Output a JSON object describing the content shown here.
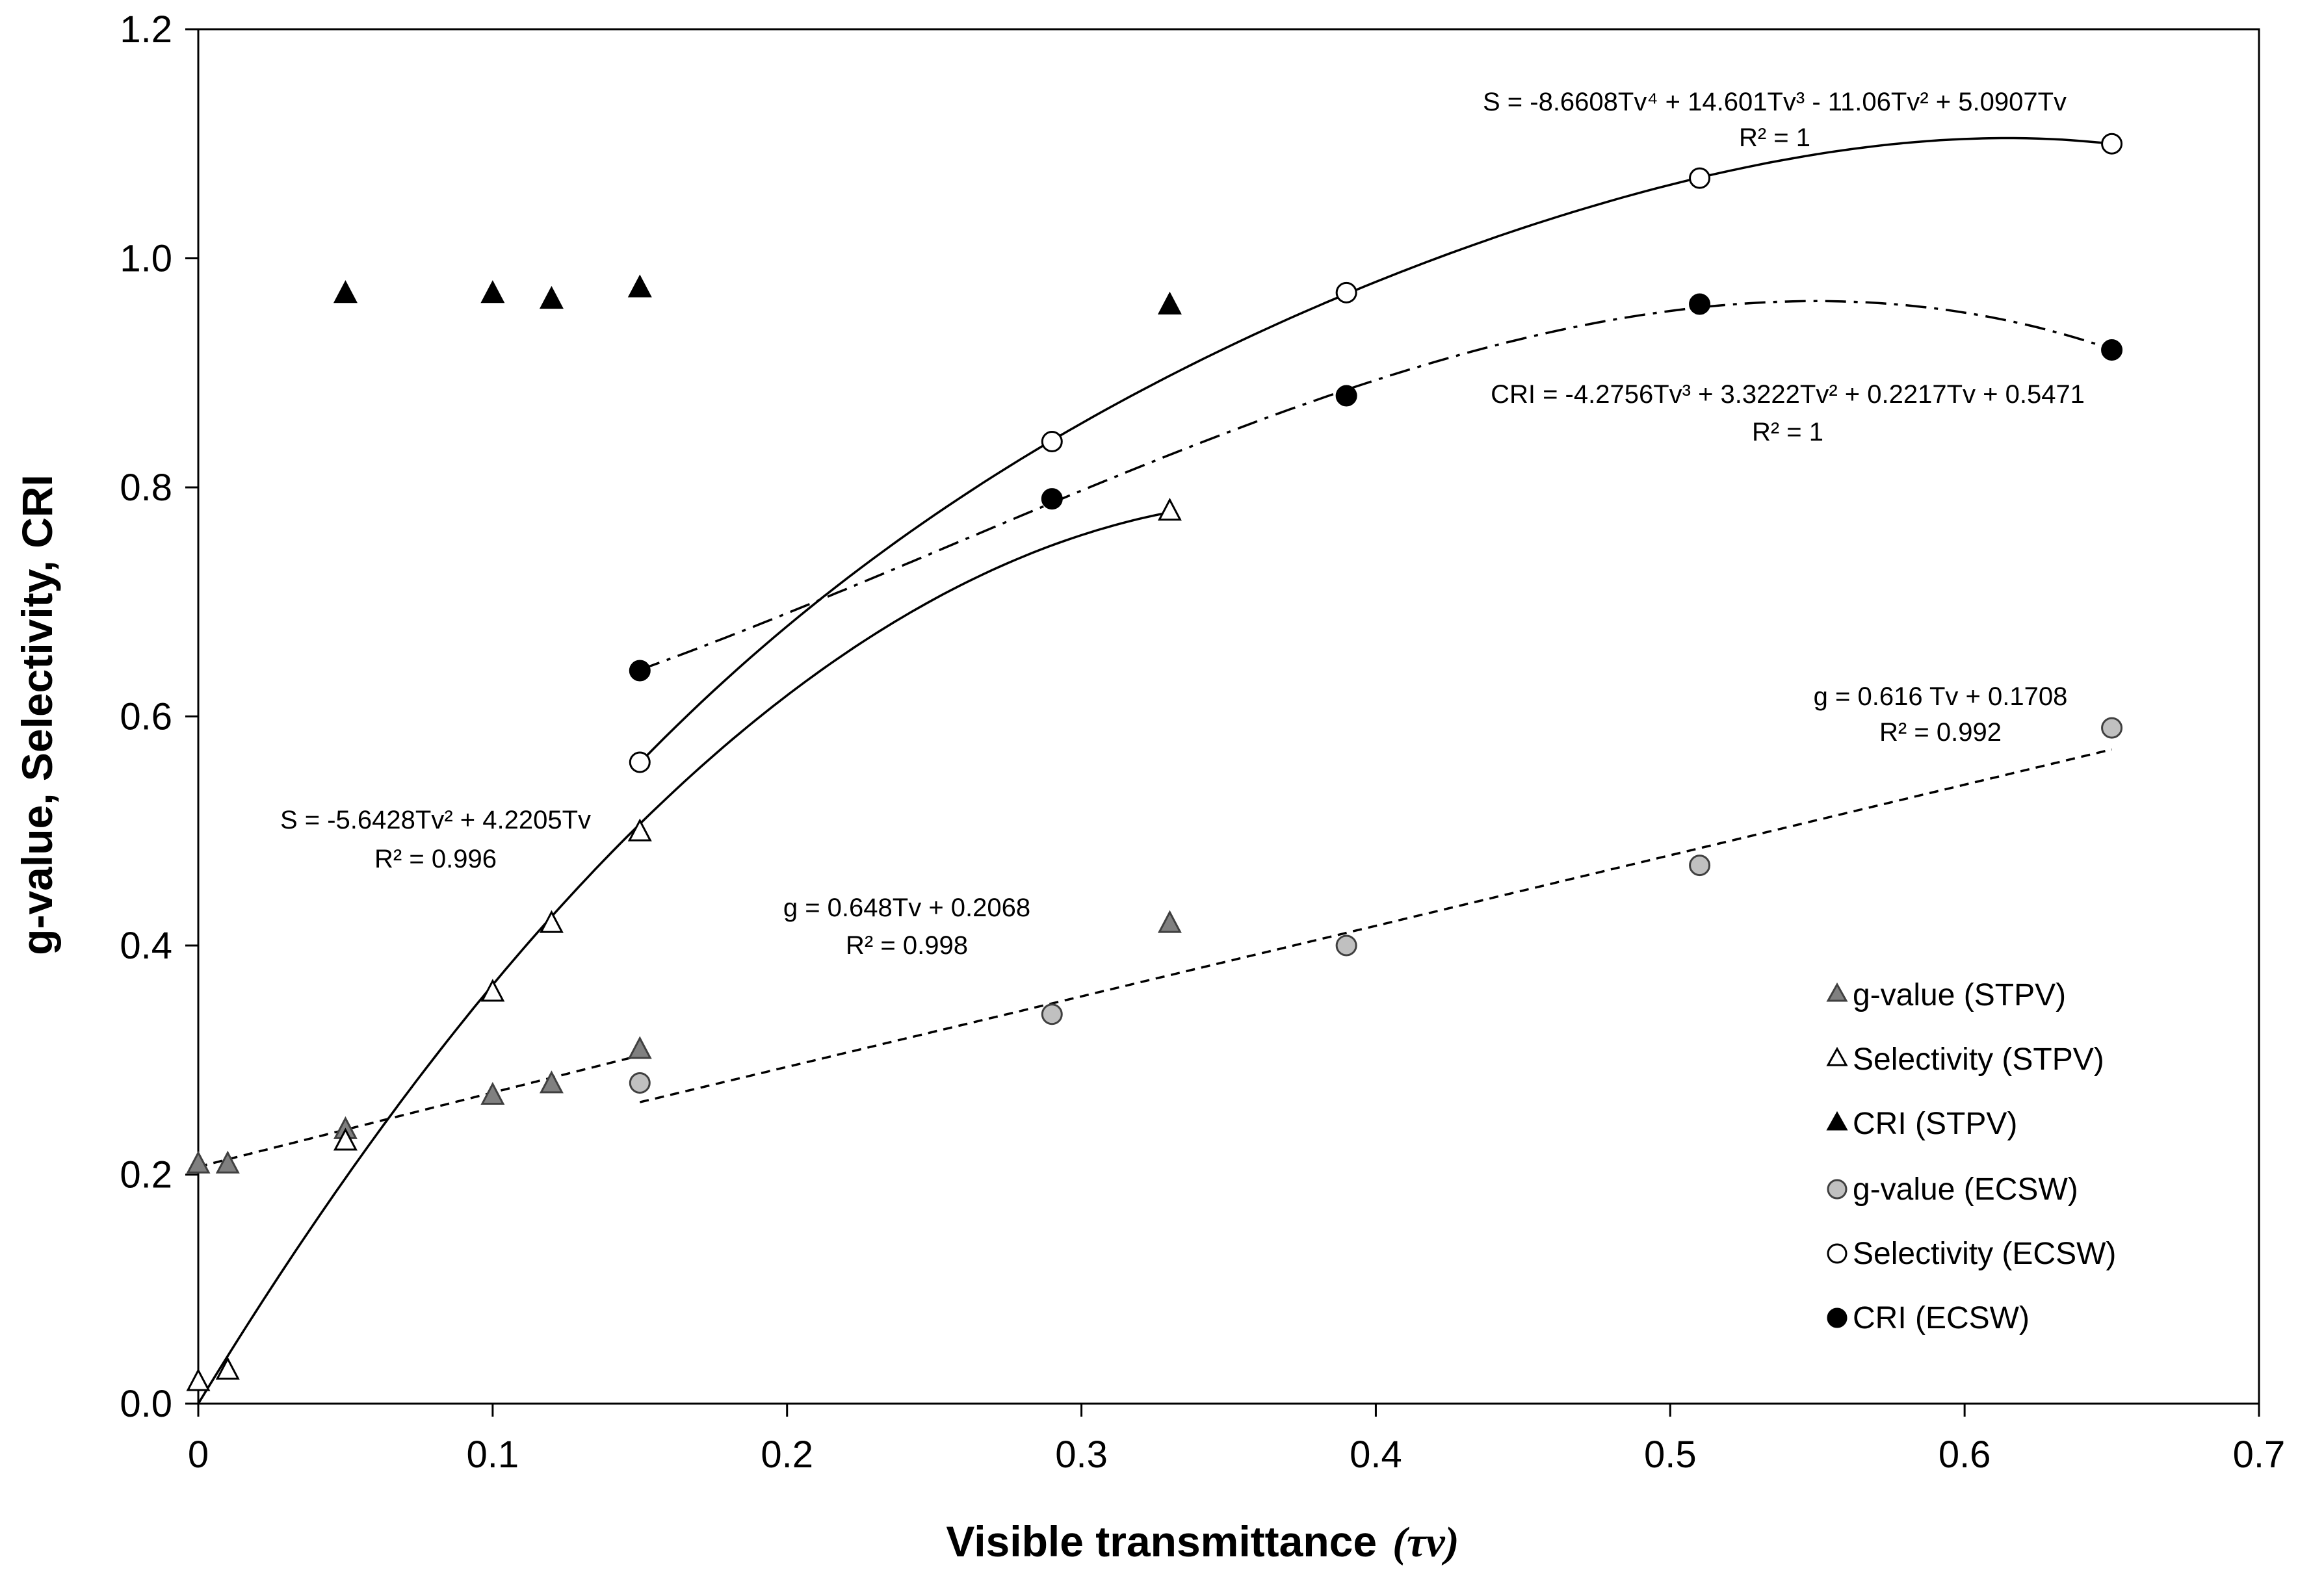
{
  "chart_data": {
    "type": "scatter",
    "xlabel": "Visible transmittance",
    "xlabel_symbol": "(τv)",
    "ylabel": "g-value, Selectivity, CRI",
    "xlim": [
      0,
      0.7
    ],
    "ylim": [
      0,
      1.2
    ],
    "x_ticks": [
      "0",
      "0.1",
      "0.2",
      "0.3",
      "0.4",
      "0.5",
      "0.6",
      "0.7"
    ],
    "y_ticks": [
      "0.0",
      "0.2",
      "0.4",
      "0.6",
      "0.8",
      "1.0",
      "1.2"
    ],
    "grid": false,
    "legend_position": "right",
    "series": [
      {
        "name": "g-value (STPV)",
        "marker": "triangle",
        "fill": "#808080",
        "x": [
          0,
          0.01,
          0.05,
          0.1,
          0.12,
          0.15,
          0.33
        ],
        "y": [
          0.21,
          0.21,
          0.24,
          0.27,
          0.28,
          0.31,
          0.42
        ]
      },
      {
        "name": "Selectivity (STPV)",
        "marker": "triangle",
        "fill": "#ffffff",
        "x": [
          0,
          0.01,
          0.05,
          0.1,
          0.12,
          0.15,
          0.33
        ],
        "y": [
          0.02,
          0.03,
          0.23,
          0.36,
          0.42,
          0.5,
          0.78
        ]
      },
      {
        "name": "CRI (STPV)",
        "marker": "triangle",
        "fill": "#000000",
        "x": [
          0.05,
          0.1,
          0.12,
          0.15,
          0.33
        ],
        "y": [
          0.97,
          0.97,
          0.965,
          0.975,
          0.96
        ]
      },
      {
        "name": "g-value (ECSW)",
        "marker": "circle",
        "fill": "#c0c0c0",
        "x": [
          0.15,
          0.29,
          0.39,
          0.51,
          0.65
        ],
        "y": [
          0.28,
          0.34,
          0.4,
          0.47,
          0.59
        ]
      },
      {
        "name": "Selectivity (ECSW)",
        "marker": "circle",
        "fill": "#ffffff",
        "x": [
          0.15,
          0.29,
          0.39,
          0.51,
          0.65
        ],
        "y": [
          0.56,
          0.84,
          0.97,
          1.07,
          1.1
        ]
      },
      {
        "name": "CRI (ECSW)",
        "marker": "circle",
        "fill": "#000000",
        "x": [
          0.15,
          0.29,
          0.39,
          0.51,
          0.65
        ],
        "y": [
          0.64,
          0.79,
          0.88,
          0.96,
          0.92
        ]
      }
    ],
    "trendlines": [
      {
        "id": "s-stpv",
        "coeffs": [
          0,
          4.2205,
          -5.6428
        ],
        "range": [
          0,
          0.33
        ],
        "style": "solid"
      },
      {
        "id": "s-ecsw",
        "coeffs": [
          0,
          5.0907,
          -11.06,
          14.601,
          -8.6608
        ],
        "range": [
          0.15,
          0.65
        ],
        "style": "solid"
      },
      {
        "id": "cri-ecsw",
        "coeffs": [
          0.5471,
          0.2217,
          3.3222,
          -4.2756
        ],
        "range": [
          0.15,
          0.65
        ],
        "style": "dashdot"
      },
      {
        "id": "g-stpv",
        "coeffs": [
          0.2068,
          0.648
        ],
        "range": [
          0,
          0.15
        ],
        "style": "dashed"
      },
      {
        "id": "g-ecsw",
        "coeffs": [
          0.1708,
          0.616
        ],
        "range": [
          0.15,
          0.65
        ],
        "style": "dashed"
      }
    ],
    "annotations": [
      {
        "id": "eq-s-ecsw",
        "line1": "S = -8.6608Tv⁴ + 14.601Tv³ - 11.06Tv² + 5.0907Tv",
        "line2": "R² = 1"
      },
      {
        "id": "eq-cri-ecsw",
        "line1": "CRI = -4.2756Tv³ + 3.3222Tv² + 0.2217Tv + 0.5471",
        "line2": "R² = 1"
      },
      {
        "id": "eq-g-ecsw",
        "line1": "g = 0.616 Tv + 0.1708",
        "line2": "R² = 0.992"
      },
      {
        "id": "eq-s-stpv",
        "line1": "S = -5.6428Tv² + 4.2205Tv",
        "line2": "R² = 0.996"
      },
      {
        "id": "eq-g-stpv",
        "line1": "g = 0.648Tv + 0.2068",
        "line2": "R² = 0.998"
      }
    ]
  }
}
